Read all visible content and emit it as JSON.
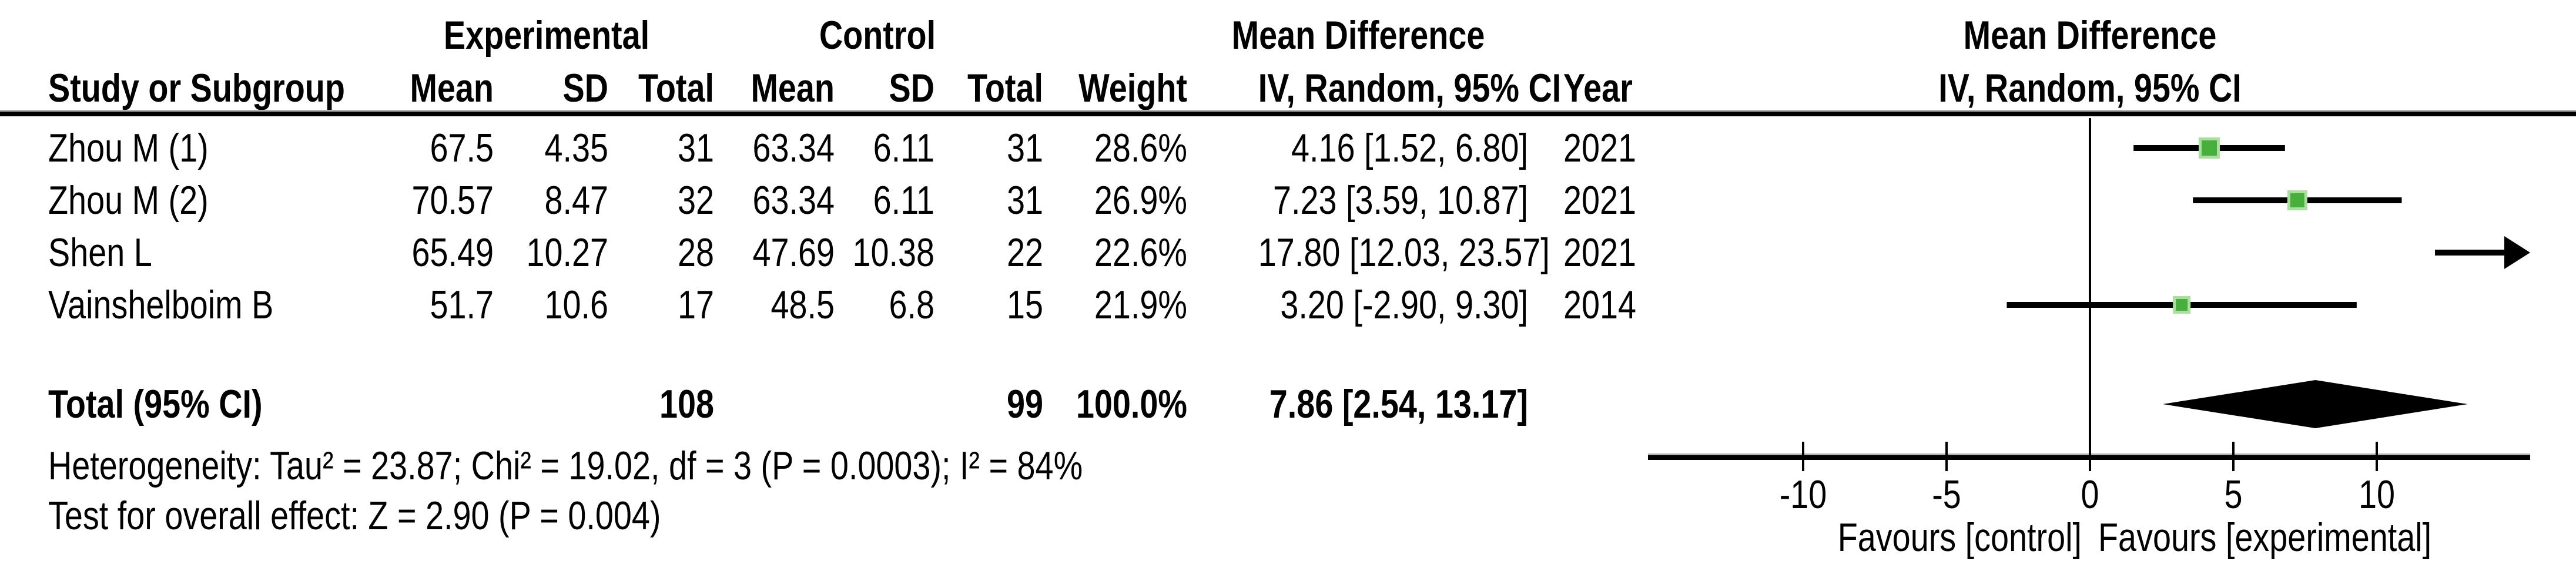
{
  "table": {
    "group_headers": {
      "experimental": "Experimental",
      "control": "Control",
      "mean_difference": "Mean Difference"
    },
    "column_headers": {
      "study": "Study or Subgroup",
      "mean": "Mean",
      "sd": "SD",
      "total": "Total",
      "weight": "Weight",
      "ci": "IV, Random, 95% CI",
      "year": "Year"
    }
  },
  "plot_header": {
    "line1": "Mean Difference",
    "line2": "IV, Random, 95% CI"
  },
  "chart_data": {
    "type": "forest",
    "effect_measure": "Mean Difference — IV, Random, 95% CI",
    "studies": [
      {
        "study": "Zhou M (1)",
        "exp_mean": 67.5,
        "exp_sd": 4.35,
        "exp_total": 31,
        "ctl_mean": 63.34,
        "ctl_sd": 6.11,
        "ctl_total": 31,
        "weight": "28.6%",
        "weight_pct": 28.6,
        "md": 4.16,
        "ci_lo": 1.52,
        "ci_hi": 6.8,
        "ci_text": "4.16 [1.52, 6.80]",
        "year": "2021",
        "offscale_right": false
      },
      {
        "study": "Zhou M (2)",
        "exp_mean": 70.57,
        "exp_sd": 8.47,
        "exp_total": 32,
        "ctl_mean": 63.34,
        "ctl_sd": 6.11,
        "ctl_total": 31,
        "weight": "26.9%",
        "weight_pct": 26.9,
        "md": 7.23,
        "ci_lo": 3.59,
        "ci_hi": 10.87,
        "ci_text": "7.23 [3.59, 10.87]",
        "year": "2021",
        "offscale_right": false
      },
      {
        "study": "Shen L",
        "exp_mean": 65.49,
        "exp_sd": 10.27,
        "exp_total": 28,
        "ctl_mean": 47.69,
        "ctl_sd": 10.38,
        "ctl_total": 22,
        "weight": "22.6%",
        "weight_pct": 22.6,
        "md": 17.8,
        "ci_lo": 12.03,
        "ci_hi": 23.57,
        "ci_text": "17.80 [12.03, 23.57]",
        "year": "2021",
        "offscale_right": true
      },
      {
        "study": "Vainshelboim B",
        "exp_mean": 51.7,
        "exp_sd": 10.6,
        "exp_total": 17,
        "ctl_mean": 48.5,
        "ctl_sd": 6.8,
        "ctl_total": 15,
        "weight": "21.9%",
        "weight_pct": 21.9,
        "md": 3.2,
        "ci_lo": -2.9,
        "ci_hi": 9.3,
        "ci_text": "3.20 [-2.90, 9.30]",
        "year": "2014",
        "offscale_right": false
      }
    ],
    "total": {
      "label": "Total (95% CI)",
      "exp_total": 108,
      "ctl_total": 99,
      "weight": "100.0%",
      "md": 7.86,
      "ci_lo": 2.54,
      "ci_hi": 13.17,
      "ci_text": "7.86 [2.54, 13.17]"
    },
    "axis": {
      "ticks": [
        "-10",
        "-5",
        "0",
        "5",
        "10"
      ],
      "tick_values": [
        -10,
        -5,
        0,
        5,
        10
      ],
      "xmin": -15.4,
      "xmax": 15.35
    },
    "footnotes": {
      "heterogeneity": "Heterogeneity: Tau² = 23.87; Chi² = 19.02, df = 3 (P = 0.0003); I² = 84%",
      "overall_effect": "Test for overall effect: Z = 2.90 (P = 0.004)"
    },
    "favours_left": "Favours [control]",
    "favours_right": "Favours [experimental]",
    "colors": {
      "marker_fill": "#47b03c",
      "marker_border": "#aadf9e",
      "line": "#000000",
      "diamond": "#000000",
      "rule_shadow": "#b0b0b0"
    }
  }
}
